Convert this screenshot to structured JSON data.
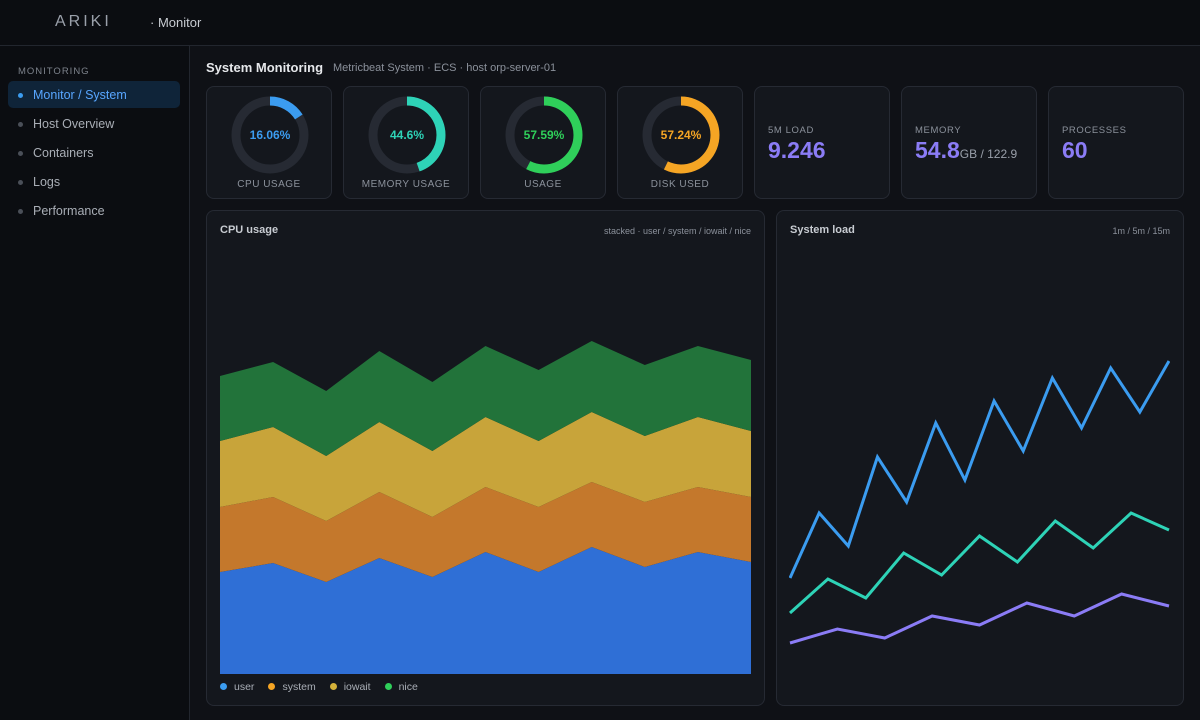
{
  "header": {
    "logo": "ARIKI",
    "section": "· Monitor"
  },
  "sidebar": {
    "heading": "MONITORING",
    "items": [
      "Monitor / System",
      "Host Overview",
      "Containers",
      "Logs",
      "Performance"
    ],
    "active": 0
  },
  "page": {
    "title": "System Monitoring",
    "subtitle": "Metricbeat System · ECS · host orp-server-01"
  },
  "gauges": {
    "labels": [
      "CPU USAGE",
      "MEMORY USAGE",
      "USAGE",
      "DISK USED"
    ],
    "values": [
      16.06,
      44.6,
      57.59,
      57.24
    ],
    "value_labels": [
      "16.06%",
      "44.6%",
      "57.59%",
      "57.24%"
    ],
    "colors": [
      "#3b9cf0",
      "#2ed3b7",
      "#2fcf5a",
      "#f5a524"
    ],
    "max": 100
  },
  "stats": [
    {
      "label": "5M LOAD",
      "value": "9.246"
    },
    {
      "label": "MEMORY",
      "value": "54.8",
      "suffix": "GB / 122.9"
    },
    {
      "label": "PROCESSES",
      "value": "60"
    }
  ],
  "chart_data": [
    {
      "type": "stacked-area",
      "title": "CPU usage",
      "subtitle": "stacked · user / system / iowait / nice",
      "ylim": [
        0,
        434
      ],
      "series": [
        {
          "name": "user",
          "color": "#2f6fd6",
          "legend_color": "#3b9cf0",
          "values": [
            102,
            111,
            92,
            116,
            97,
            122,
            102,
            127,
            107,
            122,
            112
          ]
        },
        {
          "name": "system",
          "color": "#c4782c",
          "legend_color": "#f5a524",
          "values": [
            65,
            66,
            61,
            66,
            60,
            65,
            65,
            65,
            65,
            65,
            65
          ]
        },
        {
          "name": "iowait",
          "color": "#c8a43a",
          "legend_color": "#d4b23a",
          "values": [
            66,
            70,
            65,
            70,
            66,
            70,
            66,
            70,
            66,
            70,
            66
          ]
        },
        {
          "name": "nice",
          "color": "#22733a",
          "legend_color": "#2fcf5a",
          "values": [
            65,
            65,
            65,
            71,
            69,
            71,
            71,
            71,
            71,
            71,
            71
          ]
        }
      ]
    },
    {
      "type": "line",
      "title": "System load",
      "subtitle": "1m / 5m / 15m",
      "ylim": [
        0,
        450
      ],
      "series": [
        {
          "color": "#3b9cf0",
          "values": [
            112,
            177,
            144,
            233,
            188,
            267,
            210,
            289,
            239,
            312,
            262,
            322,
            278,
            329
          ]
        },
        {
          "color": "#2ed3b7",
          "values": [
            77,
            111,
            92,
            137,
            115,
            154,
            128,
            169,
            142,
            177,
            160
          ]
        },
        {
          "color": "#8b7cf6",
          "values": [
            47,
            61,
            52,
            74,
            65,
            87,
            74,
            96,
            84
          ]
        }
      ]
    }
  ]
}
